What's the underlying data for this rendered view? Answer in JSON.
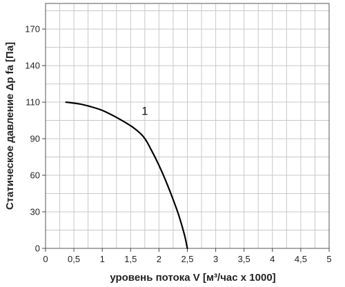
{
  "chart_data": {
    "type": "line",
    "title": "",
    "xlabel": "уровень потока  V [м³/час x 1000]",
    "ylabel": "Статическое давление  Δp fa [Па]",
    "xlim": [
      0,
      5
    ],
    "x_ticks": [
      0,
      0.5,
      1,
      1.5,
      2,
      2.5,
      3,
      3.5,
      4,
      4.5,
      5
    ],
    "x_tick_labels": [
      "0",
      "0,5",
      "1",
      "1,5",
      "2",
      "2,5",
      "3",
      "3,5",
      "4",
      "4,5",
      "5"
    ],
    "y_ticks": [
      0,
      30,
      60,
      90,
      110,
      140,
      170
    ],
    "y_tick_labels": [
      "0",
      "30",
      "60",
      "90",
      "110",
      "140",
      "170"
    ],
    "grid": true,
    "series": [
      {
        "color": "#000000",
        "x": [
          0.36,
          0.6,
          0.8,
          1.0,
          1.2,
          1.4,
          1.55,
          1.7,
          1.78,
          1.85,
          1.95,
          2.05,
          2.15,
          2.25,
          2.35,
          2.45,
          2.5
        ],
        "y": [
          110,
          109,
          107.5,
          105.5,
          102.5,
          99,
          96,
          92,
          88,
          82,
          73,
          63,
          52,
          40,
          27,
          11,
          0
        ]
      }
    ],
    "annotations": [
      {
        "text": "1",
        "x": 1.75,
        "y": 103
      }
    ]
  }
}
